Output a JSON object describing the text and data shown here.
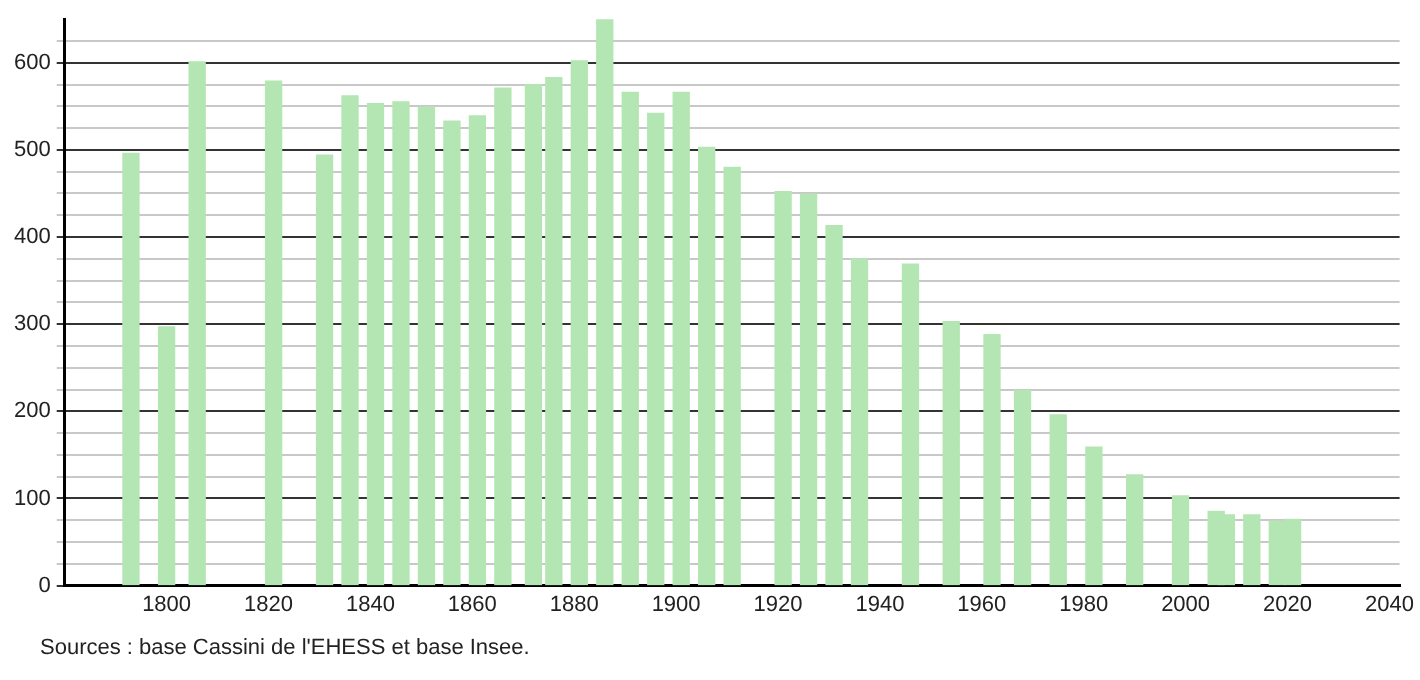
{
  "chart_data": {
    "type": "bar",
    "x": [
      1793,
      1800,
      1806,
      1821,
      1831,
      1836,
      1841,
      1846,
      1851,
      1856,
      1861,
      1866,
      1872,
      1876,
      1881,
      1886,
      1891,
      1896,
      1901,
      1906,
      1911,
      1921,
      1926,
      1931,
      1936,
      1946,
      1954,
      1962,
      1968,
      1975,
      1982,
      1990,
      1999,
      2006,
      2008,
      2013,
      2018,
      2021
    ],
    "values": [
      496,
      297,
      601,
      579,
      494,
      562,
      553,
      555,
      549,
      533,
      539,
      571,
      575,
      583,
      602,
      650,
      566,
      542,
      566,
      503,
      480,
      452,
      449,
      413,
      375,
      369,
      303,
      288,
      224,
      196,
      159,
      127,
      103,
      85,
      81,
      81,
      74,
      76
    ],
    "color": "#b3e6b3",
    "xlim": [
      1780,
      2042
    ],
    "xticks": [
      1800,
      1820,
      1840,
      1860,
      1880,
      1900,
      1920,
      1940,
      1960,
      1980,
      2000,
      2020,
      2040
    ],
    "ylim": [
      0,
      650
    ],
    "yticks": [
      0,
      {
        "value": 25,
        "label": null
      },
      {
        "value": 50,
        "label": null
      },
      {
        "value": 75,
        "label": null
      },
      100,
      {
        "value": 125,
        "label": null
      },
      {
        "value": 150,
        "label": null
      },
      {
        "value": 175,
        "label": null
      },
      200,
      {
        "value": 225,
        "label": null
      },
      {
        "value": 250,
        "label": null
      },
      {
        "value": 275,
        "label": null
      },
      300,
      {
        "value": 325,
        "label": null
      },
      {
        "value": 350,
        "label": null
      },
      {
        "value": 375,
        "label": null
      },
      400,
      {
        "value": 425,
        "label": null
      },
      {
        "value": 450,
        "label": null
      },
      {
        "value": 475,
        "label": null
      },
      500,
      {
        "value": 525,
        "label": null
      },
      {
        "value": 550,
        "label": null
      },
      {
        "value": 575,
        "label": null
      },
      600,
      {
        "value": 625,
        "label": null
      }
    ],
    "grid": "y",
    "annotations": [
      "Sources : base Cassini de l'EHESS et base Insee."
    ]
  }
}
